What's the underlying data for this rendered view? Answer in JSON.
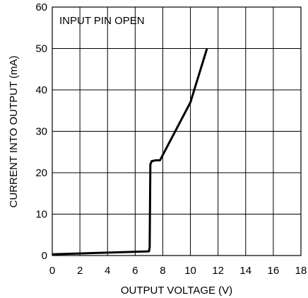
{
  "chart_data": {
    "type": "line",
    "title": "",
    "xlabel": "OUTPUT VOLTAGE (V)",
    "ylabel": "CURRENT INTO OUTPUT (mA)",
    "xlim": [
      0,
      18
    ],
    "ylim": [
      0,
      60
    ],
    "x_ticks": [
      0,
      2,
      4,
      6,
      8,
      10,
      12,
      14,
      16,
      18
    ],
    "y_ticks": [
      0,
      10,
      20,
      30,
      40,
      50,
      60
    ],
    "grid": true,
    "annotations": [
      "INPUT PIN OPEN"
    ],
    "series": [
      {
        "x": [
          0,
          7.0,
          7.05,
          7.1,
          7.2,
          7.5,
          7.8,
          10.0,
          11.2
        ],
        "y": [
          0.3,
          1.0,
          2.0,
          22.0,
          22.8,
          23.0,
          23.0,
          37.0,
          50.0
        ]
      }
    ],
    "colors": {
      "line": "#000000",
      "grid": "#000000",
      "background": "#ffffff"
    }
  }
}
